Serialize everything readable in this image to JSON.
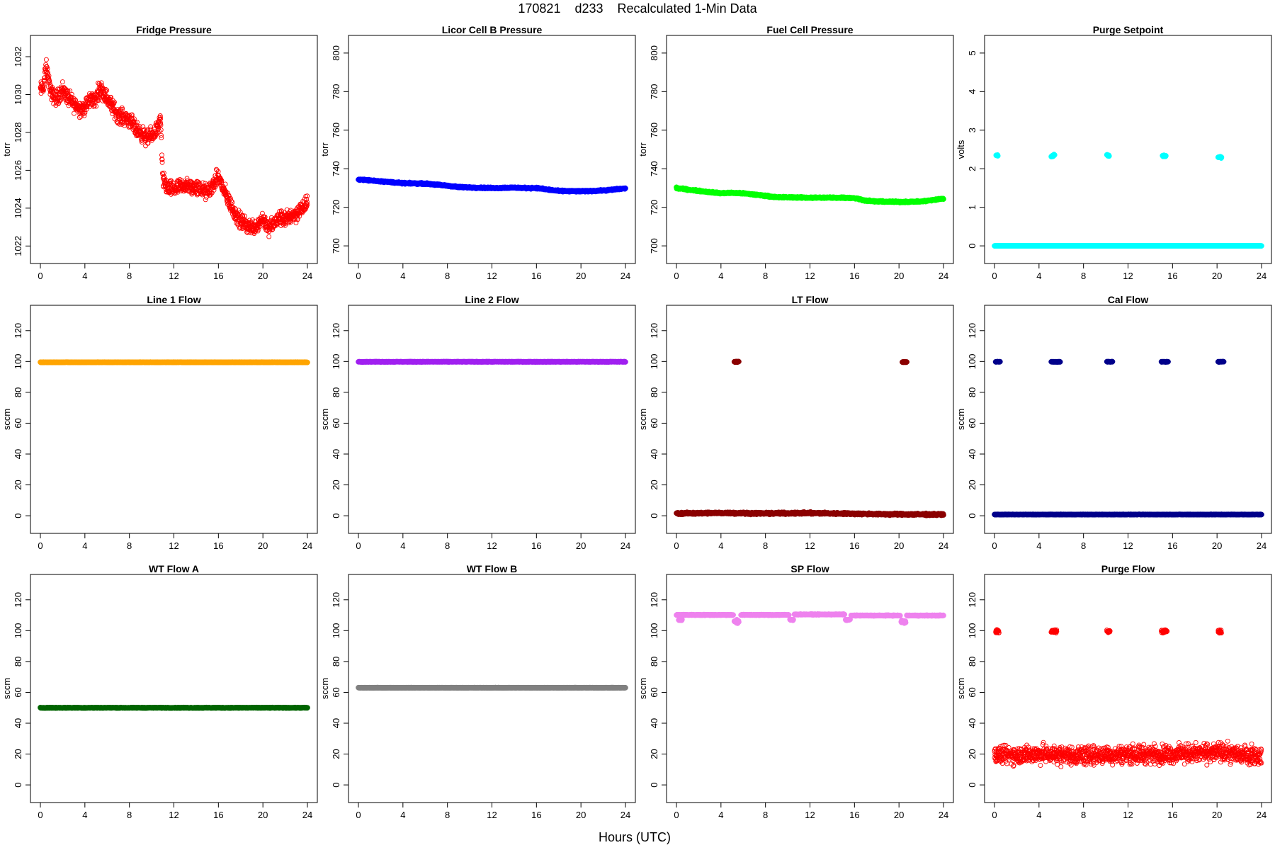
{
  "figure": {
    "title": "170821    d233    Recalculated 1-Min Data",
    "xlabel": "Hours (UTC)"
  },
  "chart_data": [
    {
      "type": "scatter",
      "title": "Fridge Pressure",
      "ylabel": "torr",
      "color": "#ff0000",
      "marker": "open-circle",
      "xlim": [
        0,
        24
      ],
      "ylim": [
        1021.6,
        1032.6
      ],
      "xticks": [
        0,
        4,
        8,
        12,
        16,
        20,
        24
      ],
      "yticks": [
        1022,
        1024,
        1026,
        1028,
        1030,
        1032
      ],
      "series": [
        {
          "x": [
            0.0,
            0.3,
            0.5,
            1.0,
            1.5,
            2.0,
            2.5,
            3.0,
            3.5,
            4.0,
            4.5,
            5.0,
            5.3,
            5.8,
            6.3,
            7.0,
            7.5,
            8.0,
            8.5,
            9.0,
            9.5,
            10.0,
            10.5,
            10.8,
            11.0,
            11.5,
            12.0,
            12.5,
            13.0,
            13.5,
            14.0,
            14.5,
            15.0,
            15.5,
            16.0,
            16.5,
            17.0,
            17.5,
            18.0,
            18.5,
            19.0,
            19.5,
            20.0,
            20.5,
            21.0,
            21.5,
            22.0,
            22.5,
            23.0,
            23.5,
            24.0
          ],
          "y": [
            1030.2,
            1030.5,
            1031.5,
            1030.0,
            1029.8,
            1030.3,
            1029.8,
            1029.5,
            1029.3,
            1029.3,
            1029.8,
            1029.7,
            1030.4,
            1030.0,
            1029.5,
            1028.9,
            1028.8,
            1028.7,
            1028.2,
            1028.0,
            1027.7,
            1027.8,
            1028.2,
            1028.6,
            1025.5,
            1025.0,
            1025.0,
            1025.1,
            1025.2,
            1025.1,
            1025.1,
            1025.0,
            1024.8,
            1025.2,
            1025.7,
            1024.9,
            1024.3,
            1023.7,
            1023.3,
            1023.1,
            1023.0,
            1023.1,
            1023.5,
            1022.9,
            1023.2,
            1023.5,
            1023.4,
            1023.6,
            1023.7,
            1024.0,
            1024.2
          ],
          "scatter": 0.35
        }
      ]
    },
    {
      "type": "scatter",
      "title": "Licor Cell B Pressure",
      "ylabel": "torr",
      "color": "#0000ff",
      "marker": "filled",
      "xlim": [
        0,
        24
      ],
      "ylim": [
        696,
        804
      ],
      "xticks": [
        0,
        4,
        8,
        12,
        16,
        20,
        24
      ],
      "yticks": [
        700,
        720,
        740,
        760,
        780,
        800
      ],
      "series": [
        {
          "x": [
            0,
            2,
            4,
            6,
            8,
            9,
            10,
            12,
            14,
            15,
            16,
            17,
            18,
            20,
            22,
            24
          ],
          "y": [
            734.5,
            733.5,
            732.5,
            732.3,
            731.2,
            730.5,
            730.3,
            730.0,
            730.2,
            730.0,
            730.0,
            729.2,
            728.5,
            728.3,
            728.7,
            729.8
          ],
          "scatter": 0.3
        }
      ]
    },
    {
      "type": "scatter",
      "title": "Fuel Cell Pressure",
      "ylabel": "torr",
      "color": "#00ff00",
      "marker": "filled",
      "xlim": [
        0,
        24
      ],
      "ylim": [
        696,
        804
      ],
      "xticks": [
        0,
        4,
        8,
        12,
        16,
        20,
        24
      ],
      "yticks": [
        700,
        720,
        740,
        760,
        780,
        800
      ],
      "series": [
        {
          "x": [
            0,
            2,
            4,
            5,
            6,
            8,
            9,
            10,
            12,
            14,
            15,
            16,
            17,
            18,
            20,
            22,
            24
          ],
          "y": [
            730.0,
            728.5,
            727.3,
            727.5,
            727.2,
            726.0,
            725.2,
            725.2,
            725.0,
            725.0,
            725.0,
            724.8,
            723.5,
            723.0,
            722.8,
            723.0,
            724.5
          ],
          "scatter": 0.3
        }
      ]
    },
    {
      "type": "scatter",
      "title": "Purge Setpoint",
      "ylabel": "volts",
      "color": "#00ffff",
      "marker": "filled",
      "xlim": [
        0,
        24
      ],
      "ylim": [
        -0.2,
        5.2
      ],
      "xticks": [
        0,
        4,
        8,
        12,
        16,
        20,
        24
      ],
      "yticks": [
        0,
        1,
        2,
        3,
        4,
        5
      ],
      "series": [
        {
          "x": [
            0,
            4,
            8,
            12,
            16,
            20,
            24
          ],
          "y": [
            0,
            0,
            0,
            0,
            0,
            0,
            0
          ],
          "scatter": 0
        },
        {
          "x": [
            0.15,
            0.3
          ],
          "y": [
            2.33,
            2.33
          ],
          "scatter": 0.02,
          "gap": true
        },
        {
          "x": [
            5.1,
            5.4
          ],
          "y": [
            2.32,
            2.35
          ],
          "scatter": 0.02,
          "gap": true
        },
        {
          "x": [
            10.1,
            10.3
          ],
          "y": [
            2.36,
            2.33
          ],
          "scatter": 0.02,
          "gap": true
        },
        {
          "x": [
            15.1,
            15.4
          ],
          "y": [
            2.33,
            2.33
          ],
          "scatter": 0.02,
          "gap": true
        },
        {
          "x": [
            20.1,
            20.4
          ],
          "y": [
            2.3,
            2.3
          ],
          "scatter": 0.02,
          "gap": true
        }
      ]
    },
    {
      "type": "scatter",
      "title": "Line 1 Flow",
      "ylabel": "sccm",
      "color": "#ffa500",
      "marker": "filled",
      "xlim": [
        0,
        24
      ],
      "ylim": [
        -5,
        130
      ],
      "xticks": [
        0,
        4,
        8,
        12,
        16,
        20,
        24
      ],
      "yticks": [
        0,
        20,
        40,
        60,
        80,
        100,
        120
      ],
      "series": [
        {
          "x": [
            0,
            24
          ],
          "y": [
            99.5,
            99.5
          ],
          "scatter": 0.1
        }
      ]
    },
    {
      "type": "scatter",
      "title": "Line 2 Flow",
      "ylabel": "sccm",
      "color": "#a020f0",
      "marker": "filled",
      "xlim": [
        0,
        24
      ],
      "ylim": [
        -5,
        130
      ],
      "xticks": [
        0,
        4,
        8,
        12,
        16,
        20,
        24
      ],
      "yticks": [
        0,
        20,
        40,
        60,
        80,
        100,
        120
      ],
      "series": [
        {
          "x": [
            0,
            24
          ],
          "y": [
            99.8,
            99.8
          ],
          "scatter": 0.1
        }
      ]
    },
    {
      "type": "scatter",
      "title": "LT Flow",
      "ylabel": "sccm",
      "color": "#8b0000",
      "marker": "filled",
      "xlim": [
        0,
        24
      ],
      "ylim": [
        -5,
        130
      ],
      "xticks": [
        0,
        4,
        8,
        12,
        16,
        20,
        24
      ],
      "yticks": [
        0,
        20,
        40,
        60,
        80,
        100,
        120
      ],
      "series": [
        {
          "x": [
            0,
            4,
            8,
            12,
            16,
            20,
            24
          ],
          "y": [
            1.5,
            1.8,
            1.5,
            1.7,
            1.3,
            0.9,
            0.8
          ],
          "scatter": 0.5
        },
        {
          "x": [
            5.2,
            5.6
          ],
          "y": [
            99.8,
            99.8
          ],
          "scatter": 0.2,
          "gap": true
        },
        {
          "x": [
            20.3,
            20.7
          ],
          "y": [
            99.6,
            99.6
          ],
          "scatter": 0.2,
          "gap": true
        }
      ]
    },
    {
      "type": "scatter",
      "title": "Cal Flow",
      "ylabel": "sccm",
      "color": "#00008b",
      "marker": "filled",
      "xlim": [
        0,
        24
      ],
      "ylim": [
        -5,
        130
      ],
      "xticks": [
        0,
        4,
        8,
        12,
        16,
        20,
        24
      ],
      "yticks": [
        0,
        20,
        40,
        60,
        80,
        100,
        120
      ],
      "series": [
        {
          "x": [
            0,
            24
          ],
          "y": [
            0.8,
            0.8
          ],
          "scatter": 0.1
        },
        {
          "x": [
            0.1,
            0.5
          ],
          "y": [
            99.8,
            99.8
          ],
          "scatter": 0.1,
          "gap": true
        },
        {
          "x": [
            5.1,
            5.9
          ],
          "y": [
            99.8,
            99.8
          ],
          "scatter": 0.1,
          "gap": true
        },
        {
          "x": [
            10.1,
            10.6
          ],
          "y": [
            99.8,
            99.8
          ],
          "scatter": 0.1,
          "gap": true
        },
        {
          "x": [
            15.0,
            15.6
          ],
          "y": [
            99.8,
            99.8
          ],
          "scatter": 0.1,
          "gap": true
        },
        {
          "x": [
            20.1,
            20.6
          ],
          "y": [
            99.8,
            99.8
          ],
          "scatter": 0.1,
          "gap": true
        }
      ]
    },
    {
      "type": "scatter",
      "title": "WT Flow A",
      "ylabel": "sccm",
      "color": "#006400",
      "marker": "filled",
      "xlim": [
        0,
        24
      ],
      "ylim": [
        -5,
        130
      ],
      "xticks": [
        0,
        4,
        8,
        12,
        16,
        20,
        24
      ],
      "yticks": [
        0,
        20,
        40,
        60,
        80,
        100,
        120
      ],
      "series": [
        {
          "x": [
            0,
            24
          ],
          "y": [
            50,
            50
          ],
          "scatter": 0.15
        }
      ]
    },
    {
      "type": "scatter",
      "title": "WT Flow B",
      "ylabel": "sccm",
      "color": "#808080",
      "marker": "filled",
      "xlim": [
        0,
        24
      ],
      "ylim": [
        -5,
        130
      ],
      "xticks": [
        0,
        4,
        8,
        12,
        16,
        20,
        24
      ],
      "yticks": [
        0,
        20,
        40,
        60,
        80,
        100,
        120
      ],
      "series": [
        {
          "x": [
            0,
            24
          ],
          "y": [
            63,
            63
          ],
          "scatter": 0.1
        }
      ]
    },
    {
      "type": "scatter",
      "title": "SP Flow",
      "ylabel": "sccm",
      "color": "#ee82ee",
      "marker": "filled",
      "xlim": [
        0,
        24
      ],
      "ylim": [
        -5,
        130
      ],
      "xticks": [
        0,
        4,
        8,
        12,
        16,
        20,
        24
      ],
      "yticks": [
        0,
        20,
        40,
        60,
        80,
        100,
        120
      ],
      "series": [
        {
          "x": [
            0.0,
            5.1
          ],
          "y": [
            110.2,
            110.2
          ],
          "scatter": 0.2
        },
        {
          "x": [
            5.8,
            10.1
          ],
          "y": [
            110.2,
            110.2
          ],
          "scatter": 0.2,
          "gap": true
        },
        {
          "x": [
            10.6,
            15.1
          ],
          "y": [
            110.5,
            110.5
          ],
          "scatter": 0.2,
          "gap": true
        },
        {
          "x": [
            15.7,
            20.1
          ],
          "y": [
            109.8,
            109.8
          ],
          "scatter": 0.2,
          "gap": true
        },
        {
          "x": [
            20.7,
            24.0
          ],
          "y": [
            109.8,
            109.8
          ],
          "scatter": 0.2,
          "gap": true
        },
        {
          "x": [
            0.2,
            0.5
          ],
          "y": [
            107,
            107
          ],
          "scatter": 0.3,
          "gap": true
        },
        {
          "x": [
            5.2,
            5.6
          ],
          "y": [
            106,
            106
          ],
          "scatter": 1.2,
          "gap": true
        },
        {
          "x": [
            10.2,
            10.5
          ],
          "y": [
            107,
            107
          ],
          "scatter": 0.3,
          "gap": true
        },
        {
          "x": [
            15.2,
            15.6
          ],
          "y": [
            107,
            107
          ],
          "scatter": 0.3,
          "gap": true
        },
        {
          "x": [
            20.2,
            20.6
          ],
          "y": [
            106,
            106
          ],
          "scatter": 1.0,
          "gap": true
        }
      ]
    },
    {
      "type": "scatter",
      "title": "Purge Flow",
      "ylabel": "sccm",
      "color": "#ff0000",
      "marker": "open-circle",
      "xlim": [
        0,
        24
      ],
      "ylim": [
        -5,
        130
      ],
      "xticks": [
        0,
        4,
        8,
        12,
        16,
        20,
        24
      ],
      "yticks": [
        0,
        20,
        40,
        60,
        80,
        100,
        120
      ],
      "series": [
        {
          "x": [
            0,
            4,
            8,
            12,
            16,
            20,
            24
          ],
          "y": [
            19,
            20,
            19,
            20,
            20,
            21,
            19
          ],
          "scatter": 5
        },
        {
          "x": [
            0.1,
            0.4
          ],
          "y": [
            99.5,
            99.5
          ],
          "scatter": 1.0,
          "gap": true
        },
        {
          "x": [
            5.1,
            5.6
          ],
          "y": [
            99.5,
            99.5
          ],
          "scatter": 1.0,
          "gap": true
        },
        {
          "x": [
            10.1,
            10.4
          ],
          "y": [
            99.5,
            99.5
          ],
          "scatter": 0.6,
          "gap": true
        },
        {
          "x": [
            15.0,
            15.5
          ],
          "y": [
            99.5,
            99.5
          ],
          "scatter": 1.0,
          "gap": true
        },
        {
          "x": [
            20.1,
            20.4
          ],
          "y": [
            99.5,
            99.5
          ],
          "scatter": 1.0,
          "gap": true
        }
      ]
    }
  ]
}
